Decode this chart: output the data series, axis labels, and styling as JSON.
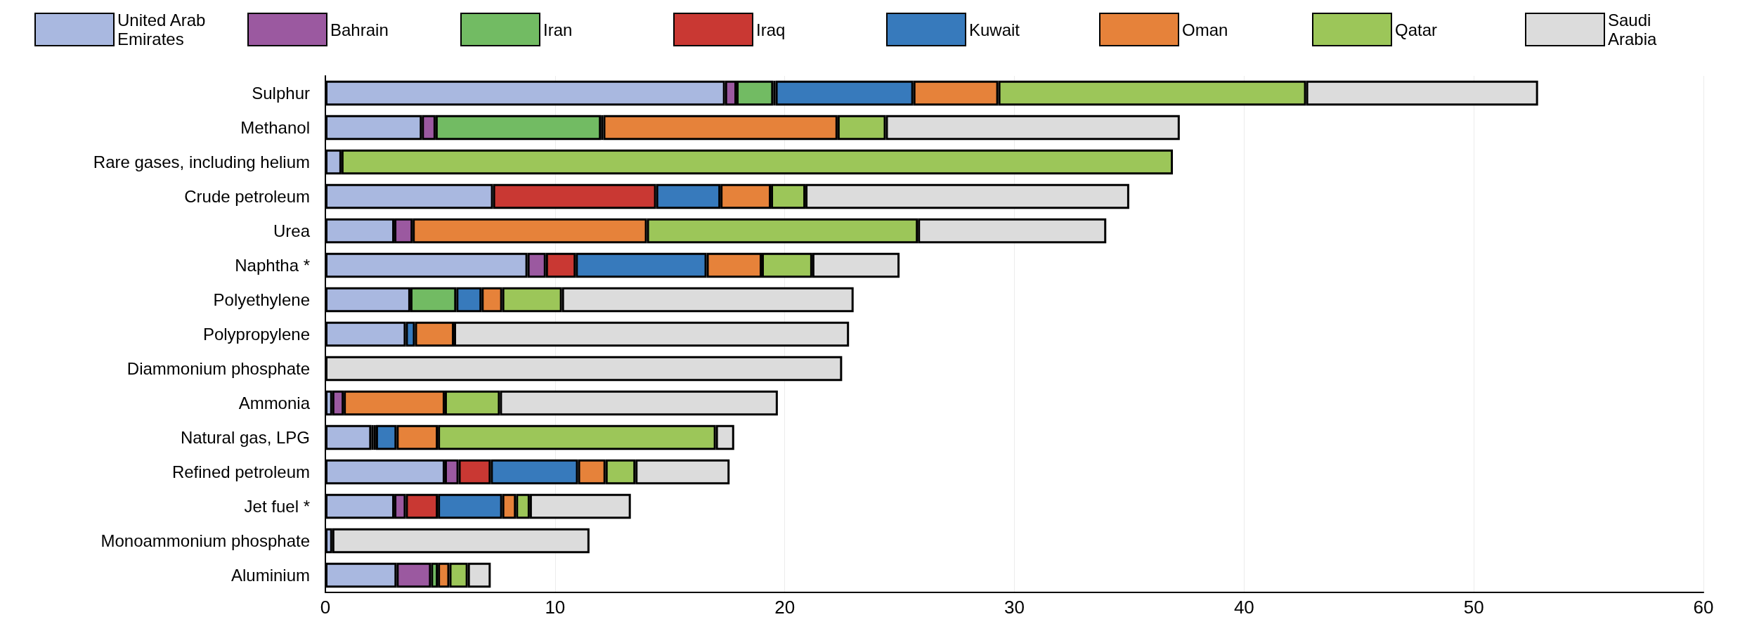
{
  "chart_data": {
    "type": "bar",
    "orientation": "horizontal",
    "stacked": true,
    "legend": "top",
    "grid": "x",
    "xlim": [
      0,
      60
    ],
    "xticks": [
      0,
      10,
      20,
      30,
      40,
      50,
      60
    ],
    "categories": [
      "Sulphur",
      "Methanol",
      "Rare gases, including helium",
      "Crude petroleum",
      "Urea",
      "Naphtha *",
      "Polyethylene",
      "Polypropylene",
      "Diammonium phosphate",
      "Ammonia",
      "Natural gas, LPG",
      "Refined petroleum",
      "Jet fuel *",
      "Monoammonium phosphate",
      "Aluminium"
    ],
    "series": [
      {
        "name": "United Arab Emirates",
        "color": "#a9b8e0",
        "values": [
          17.4,
          4.2,
          0.7,
          7.3,
          3.0,
          8.8,
          3.7,
          3.5,
          null,
          0.3,
          2.0,
          5.2,
          3.0,
          0.3,
          3.1
        ]
      },
      {
        "name": "Bahrain",
        "color": "#9b59a0",
        "values": [
          0.5,
          0.6,
          null,
          null,
          0.8,
          0.8,
          null,
          null,
          null,
          0.5,
          null,
          0.6,
          0.5,
          null,
          1.5
        ]
      },
      {
        "name": "Iran",
        "color": "#72bb63",
        "values": [
          1.6,
          7.2,
          null,
          null,
          null,
          null,
          2.0,
          null,
          null,
          null,
          0.1,
          null,
          null,
          null,
          0.3
        ]
      },
      {
        "name": "Iraq",
        "color": "#c93833",
        "values": [
          0.1,
          0.1,
          null,
          7.1,
          null,
          1.3,
          null,
          null,
          null,
          null,
          0.1,
          1.4,
          1.4,
          null,
          null
        ]
      },
      {
        "name": "Kuwait",
        "color": "#377abc",
        "values": [
          6.0,
          null,
          null,
          2.8,
          null,
          5.7,
          1.1,
          0.4,
          null,
          null,
          0.9,
          3.8,
          2.8,
          null,
          null
        ]
      },
      {
        "name": "Oman",
        "color": "#e6823a",
        "values": [
          3.7,
          10.2,
          null,
          2.2,
          10.2,
          2.4,
          0.9,
          1.7,
          null,
          4.4,
          1.8,
          1.2,
          0.6,
          null,
          0.5
        ]
      },
      {
        "name": "Qatar",
        "color": "#9cc659",
        "values": [
          13.4,
          2.1,
          36.2,
          1.5,
          11.8,
          2.2,
          2.6,
          null,
          null,
          2.4,
          12.1,
          1.3,
          0.6,
          null,
          0.8
        ]
      },
      {
        "name": "Saudi Arabia",
        "color": "#dcdcdc",
        "values": [
          10.1,
          12.8,
          null,
          14.1,
          8.2,
          3.8,
          12.7,
          17.2,
          22.5,
          12.1,
          0.8,
          4.1,
          4.4,
          11.2,
          1.0
        ]
      }
    ]
  }
}
